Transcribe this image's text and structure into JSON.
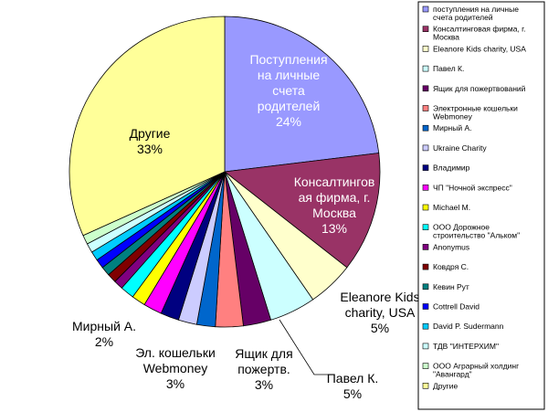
{
  "chart_data": {
    "type": "pie",
    "title": "",
    "slices": [
      {
        "label": [
          "Поступления",
          "на личные",
          "счета",
          "родителей",
          "24%"
        ],
        "legend": [
          "поступления на личные",
          "счета родителей"
        ],
        "value": 24,
        "color": "#9999FF"
      },
      {
        "label": [
          "Консалтингов",
          "ая фирма, г.",
          "Москва",
          "13%"
        ],
        "legend": [
          "Консалтинговая фирма, г.",
          "Москва"
        ],
        "value": 13,
        "color": "#993366"
      },
      {
        "label": [
          "Eleanore Kids",
          "charity, USA",
          "5%"
        ],
        "legend": [
          "Eleanore Kids charity, USA"
        ],
        "value": 5,
        "color": "#FFFFCC"
      },
      {
        "label": [
          "Павел К.",
          "5%"
        ],
        "legend": [
          "Павел К."
        ],
        "value": 5,
        "color": "#CCFFFF"
      },
      {
        "label": [
          "Ящик для",
          "пожертв.",
          "3%"
        ],
        "legend": [
          "Ящик для пожертвований"
        ],
        "value": 3,
        "color": "#660066"
      },
      {
        "label": [],
        "legend": [
          "Электронные кошельки",
          "Webmoney"
        ],
        "value": 3,
        "color": "#FF8080"
      },
      {
        "label": [],
        "legend": [
          "Мирный А."
        ],
        "value": 2,
        "color": "#0066CC"
      },
      {
        "label": [],
        "legend": [
          "Ukraine Charity"
        ],
        "value": 2,
        "color": "#CCCCFF"
      },
      {
        "label": [],
        "legend": [
          "Владимир"
        ],
        "value": 2,
        "color": "#000080"
      },
      {
        "label": [],
        "legend": [
          "ЧП \"Ночной экспресс\""
        ],
        "value": 2,
        "color": "#FF00FF"
      },
      {
        "label": [],
        "legend": [
          "Michael M."
        ],
        "value": 1.5,
        "color": "#FFFF00"
      },
      {
        "label": [],
        "legend": [
          "ООО Дорожное",
          "строительство \"Альком\""
        ],
        "value": 1.5,
        "color": "#00FFFF"
      },
      {
        "label": [],
        "legend": [
          "Anonymus"
        ],
        "value": 1,
        "color": "#800080"
      },
      {
        "label": [],
        "legend": [
          "Ковдря С."
        ],
        "value": 1,
        "color": "#800000"
      },
      {
        "label": [],
        "legend": [
          "Кевин Рут"
        ],
        "value": 1,
        "color": "#008080"
      },
      {
        "label": [],
        "legend": [
          "Cottrell David"
        ],
        "value": 1,
        "color": "#0000FF"
      },
      {
        "label": [],
        "legend": [
          "David P. Sudermann"
        ],
        "value": 1,
        "color": "#00CCFF"
      },
      {
        "label": [],
        "legend": [
          "ТДВ \"ИНТЕРХИМ\""
        ],
        "value": 1,
        "color": "#CCFFFF"
      },
      {
        "label": [],
        "legend": [
          "ООО Аграрный холдинг",
          "\"Авангард\""
        ],
        "value": 1,
        "color": "#CCFFCC"
      },
      {
        "label": [
          "Другие",
          "33%"
        ],
        "legend": [
          "Другие"
        ],
        "value": 33,
        "color": "#FFFF99"
      }
    ],
    "outside_labels": {
      "webmoney": [
        "Эл. кошельки",
        "Webmoney",
        "3%"
      ],
      "mirny": [
        "Мирный А.",
        "2%"
      ]
    },
    "legend_position": "right"
  }
}
